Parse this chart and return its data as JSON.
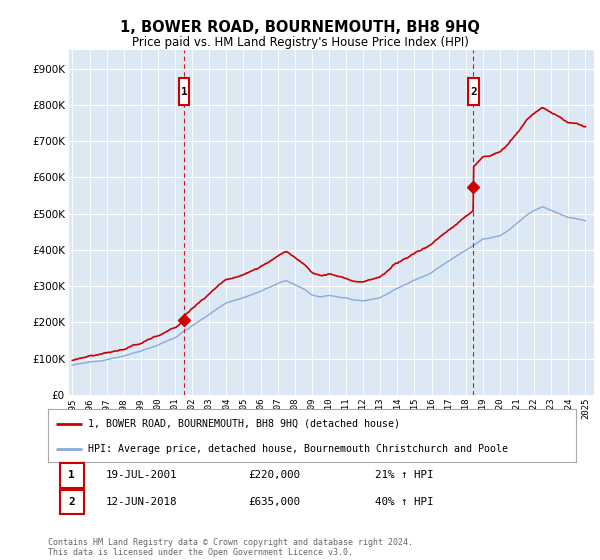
{
  "title": "1, BOWER ROAD, BOURNEMOUTH, BH8 9HQ",
  "subtitle": "Price paid vs. HM Land Registry's House Price Index (HPI)",
  "fig_bg_color": "#ffffff",
  "plot_bg_color": "#dce9f5",
  "ylim": [
    0,
    950000
  ],
  "yticks": [
    0,
    100000,
    200000,
    300000,
    400000,
    500000,
    600000,
    700000,
    800000,
    900000
  ],
  "xlim_start": 1994.8,
  "xlim_end": 2025.5,
  "xticks": [
    1995,
    1996,
    1997,
    1998,
    1999,
    2000,
    2001,
    2002,
    2003,
    2004,
    2005,
    2006,
    2007,
    2008,
    2009,
    2010,
    2011,
    2012,
    2013,
    2014,
    2015,
    2016,
    2017,
    2018,
    2019,
    2020,
    2021,
    2022,
    2023,
    2024,
    2025
  ],
  "sale1_x": 2001.54,
  "sale1_y": 220000,
  "sale1_label": "1",
  "sale1_date": "19-JUL-2001",
  "sale1_price": "£220,000",
  "sale1_hpi": "21% ↑ HPI",
  "sale2_x": 2018.45,
  "sale2_y": 635000,
  "sale2_label": "2",
  "sale2_date": "12-JUN-2018",
  "sale2_price": "£635,000",
  "sale2_hpi": "40% ↑ HPI",
  "line1_color": "#cc0000",
  "line2_color": "#88aadd",
  "legend1_label": "1, BOWER ROAD, BOURNEMOUTH, BH8 9HQ (detached house)",
  "legend2_label": "HPI: Average price, detached house, Bournemouth Christchurch and Poole",
  "footer": "Contains HM Land Registry data © Crown copyright and database right 2024.\nThis data is licensed under the Open Government Licence v3.0.",
  "marker_box_color": "#cc0000",
  "vline_color": "#cc0000",
  "grid_color": "#ffffff"
}
